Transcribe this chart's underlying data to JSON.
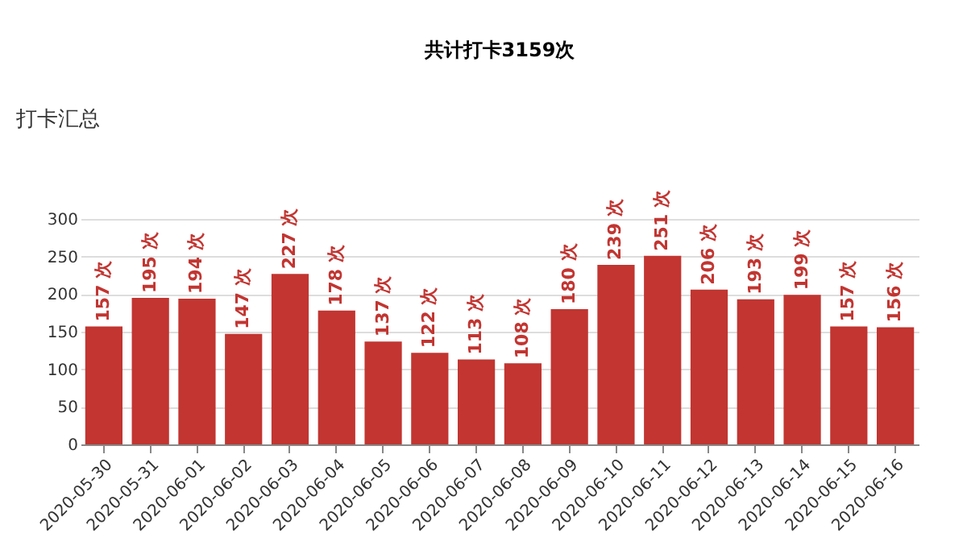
{
  "chart_data": {
    "type": "bar",
    "title": "共计打卡3159次",
    "annotations": [
      "打卡汇总"
    ],
    "categories": [
      "2020-05-30",
      "2020-05-31",
      "2020-06-01",
      "2020-06-02",
      "2020-06-03",
      "2020-06-04",
      "2020-06-05",
      "2020-06-06",
      "2020-06-07",
      "2020-06-08",
      "2020-06-09",
      "2020-06-10",
      "2020-06-11",
      "2020-06-12",
      "2020-06-13",
      "2020-06-14",
      "2020-06-15",
      "2020-06-16"
    ],
    "values": [
      157,
      195,
      194,
      147,
      227,
      178,
      137,
      122,
      113,
      108,
      180,
      239,
      251,
      206,
      193,
      199,
      157,
      156
    ],
    "value_labels": [
      "157 次",
      "195 次",
      "194 次",
      "147 次",
      "227 次",
      "178 次",
      "137 次",
      "122 次",
      "113 次",
      "108 次",
      "180 次",
      "239 次",
      "251 次",
      "206 次",
      "193 次",
      "199 次",
      "157 次",
      "156 次"
    ],
    "color": "#c23531",
    "ylim": [
      0,
      300
    ],
    "yticks": [
      0,
      50,
      100,
      150,
      200,
      250,
      300
    ],
    "grid": "y"
  }
}
